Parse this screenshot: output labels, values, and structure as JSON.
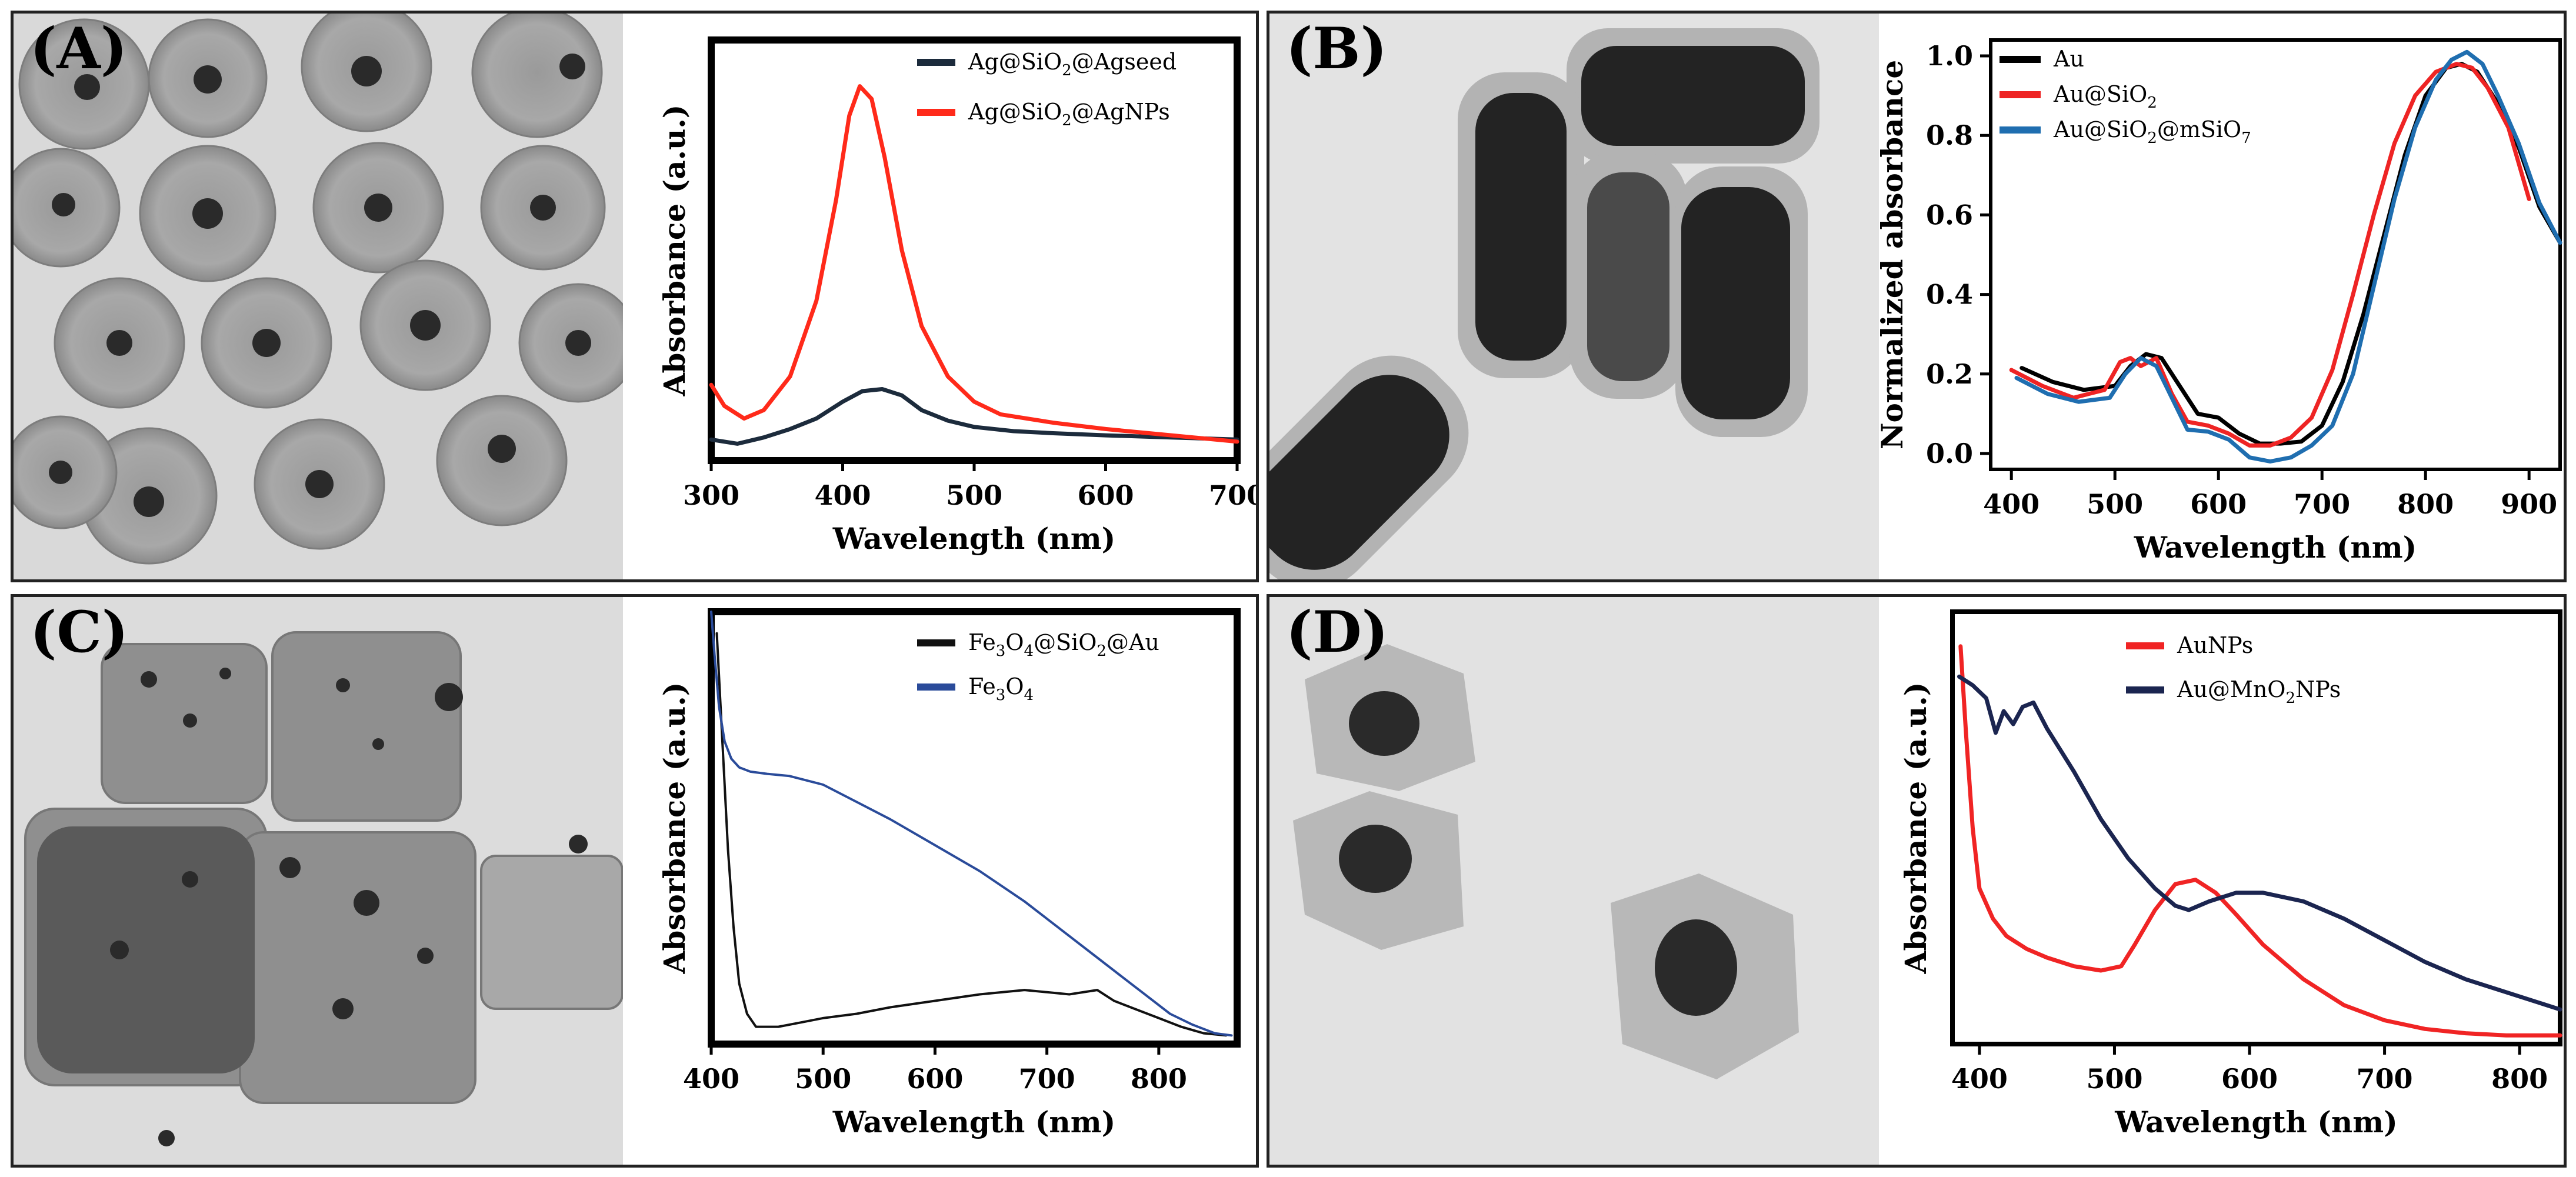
{
  "figure": {
    "panels": [
      {
        "id": "A",
        "label": "(A)"
      },
      {
        "id": "B",
        "label": "(B)"
      },
      {
        "id": "C",
        "label": "(C)"
      },
      {
        "id": "D",
        "label": "(D)"
      }
    ]
  },
  "chart_data": [
    {
      "panel": "A",
      "type": "line",
      "title": "",
      "xlabel": "Wavelength (nm)",
      "ylabel": "Absorbance (a.u.)",
      "xlim": [
        300,
        700
      ],
      "ylim": [
        0,
        1.0
      ],
      "xticks": [
        300,
        400,
        500,
        600,
        700
      ],
      "yticks": [],
      "grid": false,
      "legend_position": "top-right",
      "series": [
        {
          "name": "Ag@SiO2@Agseed",
          "name_parts": [
            [
              "Ag@SiO",
              false
            ],
            [
              "2",
              true
            ],
            [
              "@Agseed",
              false
            ]
          ],
          "color": "#1c2b3c",
          "x": [
            300,
            320,
            340,
            360,
            380,
            400,
            415,
            430,
            445,
            460,
            480,
            500,
            530,
            560,
            600,
            650,
            700
          ],
          "y": [
            0.05,
            0.04,
            0.055,
            0.075,
            0.1,
            0.14,
            0.165,
            0.17,
            0.155,
            0.12,
            0.095,
            0.08,
            0.07,
            0.065,
            0.06,
            0.055,
            0.05
          ]
        },
        {
          "name": "Ag@SiO2@AgNPs",
          "name_parts": [
            [
              "Ag@SiO",
              false
            ],
            [
              "2",
              true
            ],
            [
              "@AgNPs",
              false
            ]
          ],
          "color": "#ff2a1a",
          "x": [
            300,
            310,
            325,
            340,
            360,
            380,
            395,
            405,
            413,
            422,
            432,
            445,
            460,
            480,
            500,
            520,
            560,
            600,
            650,
            700
          ],
          "y": [
            0.18,
            0.13,
            0.1,
            0.12,
            0.2,
            0.38,
            0.62,
            0.82,
            0.89,
            0.86,
            0.72,
            0.5,
            0.32,
            0.2,
            0.14,
            0.11,
            0.09,
            0.075,
            0.06,
            0.045
          ]
        }
      ]
    },
    {
      "panel": "B",
      "type": "line",
      "title": "",
      "xlabel": "Wavelength (nm)",
      "ylabel": "Normalized absorbance",
      "xlim": [
        380,
        930
      ],
      "ylim": [
        -0.04,
        1.04
      ],
      "xticks": [
        400,
        500,
        600,
        700,
        800,
        900
      ],
      "yticks": [
        0.0,
        0.2,
        0.4,
        0.6,
        0.8,
        1.0
      ],
      "ytick_labels": [
        "0.0",
        "0.2",
        "0.4",
        "0.6",
        "0.8",
        "1.0"
      ],
      "grid": false,
      "legend_position": "top-left",
      "series": [
        {
          "name": "Au",
          "name_parts": [
            [
              "Au",
              false
            ]
          ],
          "color": "#000000",
          "x": [
            410,
            440,
            470,
            500,
            515,
            530,
            545,
            560,
            580,
            600,
            620,
            640,
            660,
            680,
            700,
            720,
            740,
            760,
            780,
            800,
            820,
            835,
            850,
            870,
            890,
            910,
            930
          ],
          "y": [
            0.215,
            0.18,
            0.16,
            0.17,
            0.22,
            0.25,
            0.24,
            0.18,
            0.1,
            0.09,
            0.05,
            0.025,
            0.025,
            0.03,
            0.07,
            0.18,
            0.35,
            0.55,
            0.75,
            0.9,
            0.97,
            0.98,
            0.96,
            0.88,
            0.77,
            0.62,
            0.53
          ]
        },
        {
          "name": "Au@SiO2",
          "name_parts": [
            [
              "Au@SiO",
              false
            ],
            [
              "2",
              true
            ]
          ],
          "color": "#ee2424",
          "x": [
            400,
            430,
            460,
            490,
            505,
            515,
            525,
            540,
            555,
            570,
            590,
            610,
            630,
            650,
            670,
            690,
            710,
            730,
            750,
            770,
            790,
            810,
            830,
            845,
            860,
            880,
            900
          ],
          "y": [
            0.21,
            0.17,
            0.14,
            0.16,
            0.23,
            0.24,
            0.22,
            0.24,
            0.15,
            0.08,
            0.07,
            0.05,
            0.02,
            0.02,
            0.04,
            0.09,
            0.21,
            0.4,
            0.6,
            0.78,
            0.9,
            0.96,
            0.98,
            0.97,
            0.92,
            0.82,
            0.64
          ]
        },
        {
          "name": "Au@SiO2@mSiO7",
          "name_parts": [
            [
              "Au@SiO",
              false
            ],
            [
              "2",
              true
            ],
            [
              "@mSiO",
              false
            ],
            [
              "7",
              true
            ]
          ],
          "color": "#1f6eb0",
          "x": [
            405,
            435,
            465,
            495,
            510,
            525,
            540,
            555,
            570,
            590,
            610,
            630,
            650,
            670,
            690,
            710,
            730,
            750,
            770,
            790,
            810,
            825,
            840,
            855,
            870,
            890,
            910,
            930
          ],
          "y": [
            0.19,
            0.15,
            0.13,
            0.14,
            0.2,
            0.24,
            0.22,
            0.14,
            0.06,
            0.055,
            0.035,
            -0.01,
            -0.02,
            -0.01,
            0.02,
            0.07,
            0.2,
            0.42,
            0.64,
            0.82,
            0.94,
            0.99,
            1.01,
            0.98,
            0.9,
            0.78,
            0.63,
            0.53
          ]
        }
      ]
    },
    {
      "panel": "C",
      "type": "line",
      "title": "",
      "xlabel": "Wavelength (nm)",
      "ylabel": "Absorbance (a.u.)",
      "xlim": [
        400,
        870
      ],
      "ylim": [
        0,
        1.0
      ],
      "xticks": [
        400,
        500,
        600,
        700,
        800
      ],
      "yticks": [],
      "grid": false,
      "legend_position": "top-right",
      "series": [
        {
          "name": "Fe3O4@SiO2@Au",
          "name_parts": [
            [
              "Fe",
              false
            ],
            [
              "3",
              true
            ],
            [
              "O",
              false
            ],
            [
              "4",
              true
            ],
            [
              "@SiO",
              false
            ],
            [
              "2",
              true
            ],
            [
              "@Au",
              false
            ]
          ],
          "color": "#111111",
          "x": [
            405,
            410,
            415,
            420,
            425,
            432,
            440,
            450,
            460,
            480,
            500,
            530,
            560,
            600,
            640,
            680,
            700,
            720,
            745,
            760,
            780,
            800,
            820,
            840,
            860
          ],
          "y": [
            0.95,
            0.7,
            0.45,
            0.27,
            0.14,
            0.07,
            0.04,
            0.04,
            0.04,
            0.05,
            0.06,
            0.07,
            0.085,
            0.1,
            0.115,
            0.125,
            0.12,
            0.115,
            0.125,
            0.1,
            0.08,
            0.06,
            0.04,
            0.025,
            0.02
          ]
        },
        {
          "name": "Fe3O4",
          "name_parts": [
            [
              "Fe",
              false
            ],
            [
              "3",
              true
            ],
            [
              "O",
              false
            ],
            [
              "4",
              true
            ]
          ],
          "color": "#2a4b9a",
          "x": [
            400,
            403,
            407,
            412,
            418,
            425,
            435,
            450,
            470,
            500,
            530,
            560,
            600,
            640,
            680,
            720,
            745,
            770,
            790,
            810,
            830,
            850,
            865
          ],
          "y": [
            1.0,
            0.9,
            0.78,
            0.7,
            0.66,
            0.64,
            0.63,
            0.625,
            0.62,
            0.6,
            0.56,
            0.52,
            0.46,
            0.4,
            0.33,
            0.25,
            0.2,
            0.15,
            0.11,
            0.07,
            0.045,
            0.025,
            0.02
          ]
        }
      ]
    },
    {
      "panel": "D",
      "type": "line",
      "title": "",
      "xlabel": "Wavelength (nm)",
      "ylabel": "Absorbance (a.u.)",
      "xlim": [
        380,
        830
      ],
      "ylim": [
        0,
        1.0
      ],
      "xticks": [
        400,
        500,
        600,
        700,
        800
      ],
      "yticks": [],
      "grid": false,
      "legend_position": "top-center",
      "series": [
        {
          "name": "AuNPs",
          "name_parts": [
            [
              "AuNPs",
              false
            ]
          ],
          "color": "#f02424",
          "x": [
            386,
            390,
            395,
            400,
            410,
            420,
            435,
            450,
            470,
            490,
            505,
            515,
            530,
            545,
            560,
            575,
            590,
            610,
            640,
            670,
            700,
            730,
            760,
            790,
            830
          ],
          "y": [
            0.92,
            0.72,
            0.5,
            0.36,
            0.29,
            0.25,
            0.22,
            0.2,
            0.18,
            0.17,
            0.18,
            0.23,
            0.31,
            0.37,
            0.38,
            0.35,
            0.3,
            0.23,
            0.15,
            0.09,
            0.055,
            0.035,
            0.025,
            0.02,
            0.02
          ]
        },
        {
          "name": "Au@MnO2NPs",
          "name_parts": [
            [
              "Au@MnO",
              false
            ],
            [
              "2",
              true
            ],
            [
              "NPs",
              false
            ]
          ],
          "color": "#1b2550",
          "x": [
            385,
            395,
            405,
            412,
            418,
            425,
            432,
            440,
            450,
            470,
            490,
            510,
            530,
            545,
            555,
            570,
            590,
            610,
            640,
            670,
            700,
            730,
            760,
            790,
            830
          ],
          "y": [
            0.85,
            0.83,
            0.8,
            0.72,
            0.77,
            0.74,
            0.78,
            0.79,
            0.73,
            0.63,
            0.52,
            0.43,
            0.36,
            0.32,
            0.31,
            0.33,
            0.35,
            0.35,
            0.33,
            0.29,
            0.24,
            0.19,
            0.15,
            0.12,
            0.08
          ]
        }
      ]
    }
  ]
}
